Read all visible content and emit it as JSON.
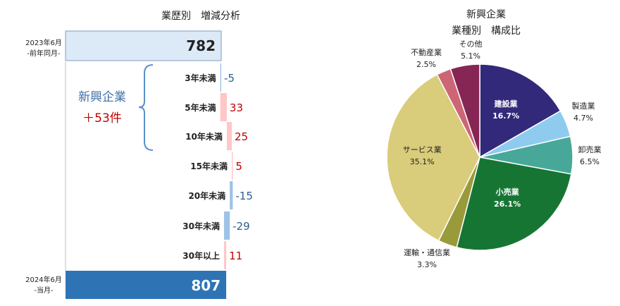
{
  "chart_data": [
    {
      "type": "bar",
      "title": "業歴別　増減分析",
      "start": {
        "label_line1": "2023年6月",
        "label_line2": "-前年同月-",
        "value": 782
      },
      "end": {
        "label_line1": "2024年6月",
        "label_line2": "-当月-",
        "value": 807
      },
      "categories": [
        "3年未満",
        "5年未満",
        "10年未満",
        "15年未満",
        "20年未満",
        "30年未満",
        "30年以上"
      ],
      "values": [
        -5,
        33,
        25,
        5,
        -15,
        -29,
        11
      ],
      "value_labels": [
        "-5",
        "33",
        "25",
        "5",
        "-15",
        "-29",
        "11"
      ],
      "brace_annotation": {
        "line1": "新興企業",
        "line2": "＋53件"
      },
      "colors": {
        "start": "#dce9f6",
        "end": "#2e74b5",
        "increase": "#ffc7c7",
        "decrease": "#9dc3e6",
        "pos_text": "#c00000",
        "neg_text": "#2e5d8e",
        "brace": "#5b8fc9"
      }
    },
    {
      "type": "pie",
      "title_line1": "新興企業",
      "title_line2": "業種別　構成比",
      "slices": [
        {
          "name": "建設業",
          "value": 16.7,
          "label": "16.7%",
          "color": "#33297a"
        },
        {
          "name": "製造業",
          "value": 4.7,
          "label": "4.7%",
          "color": "#8ecbef"
        },
        {
          "name": "卸売業",
          "value": 6.5,
          "label": "6.5%",
          "color": "#47a89a"
        },
        {
          "name": "小売業",
          "value": 26.1,
          "label": "26.1%",
          "color": "#177534"
        },
        {
          "name": "運輸・通信業",
          "value": 3.3,
          "label": "3.3%",
          "color": "#999b3b"
        },
        {
          "name": "サービス業",
          "value": 35.1,
          "label": "35.1%",
          "color": "#d9cc7b"
        },
        {
          "name": "不動産業",
          "value": 2.5,
          "label": "2.5%",
          "color": "#cc6675"
        },
        {
          "name": "その他",
          "value": 5.1,
          "label": "5.1%",
          "color": "#862655"
        }
      ]
    }
  ]
}
